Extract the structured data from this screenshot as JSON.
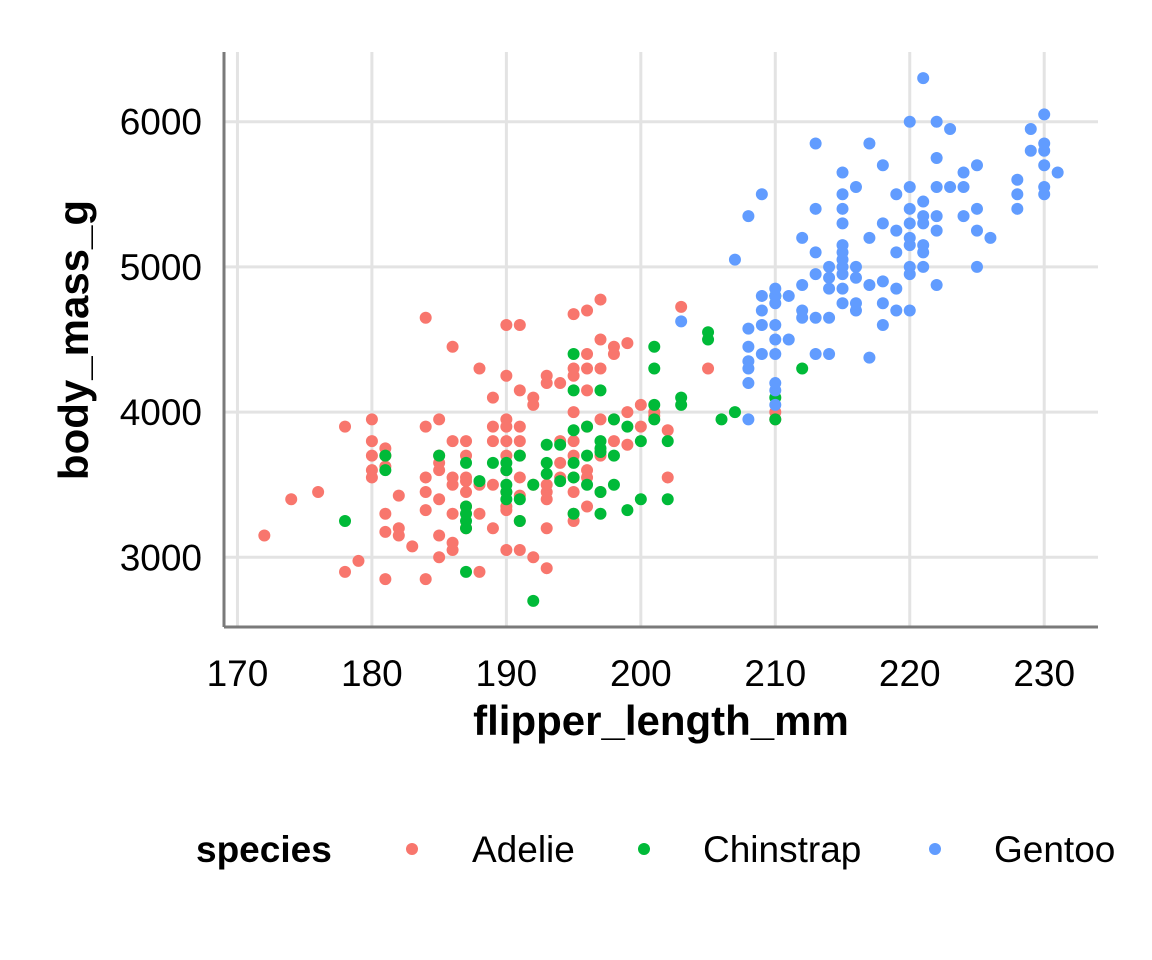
{
  "chart_data": {
    "type": "scatter",
    "xlabel": "flipper_length_mm",
    "ylabel": "body_mass_g",
    "xlim": [
      169,
      234
    ],
    "ylim": [
      2520,
      6480
    ],
    "x_ticks": [
      170,
      180,
      190,
      200,
      210,
      220,
      230
    ],
    "y_ticks": [
      3000,
      4000,
      5000,
      6000
    ],
    "x_tick_labels": [
      "170",
      "180",
      "190",
      "200",
      "210",
      "220",
      "230"
    ],
    "y_tick_labels": [
      "3000",
      "4000",
      "5000",
      "6000"
    ],
    "grid": true,
    "legend_position": "bottom",
    "legend_title": "species",
    "series": [
      {
        "name": "Adelie",
        "color": "#F8766D",
        "points": [
          [
            172,
            3150
          ],
          [
            174,
            3400
          ],
          [
            176,
            3450
          ],
          [
            178,
            2900
          ],
          [
            178,
            3900
          ],
          [
            179,
            2975
          ],
          [
            180,
            3550
          ],
          [
            180,
            3600
          ],
          [
            180,
            3700
          ],
          [
            180,
            3800
          ],
          [
            180,
            3950
          ],
          [
            181,
            2850
          ],
          [
            181,
            3175
          ],
          [
            181,
            3300
          ],
          [
            181,
            3625
          ],
          [
            181,
            3700
          ],
          [
            181,
            3750
          ],
          [
            182,
            3150
          ],
          [
            182,
            3200
          ],
          [
            182,
            3425
          ],
          [
            183,
            3075
          ],
          [
            184,
            2850
          ],
          [
            184,
            3325
          ],
          [
            184,
            3450
          ],
          [
            184,
            3550
          ],
          [
            184,
            3900
          ],
          [
            184,
            4650
          ],
          [
            185,
            3000
          ],
          [
            185,
            3150
          ],
          [
            185,
            3400
          ],
          [
            185,
            3600
          ],
          [
            185,
            3650
          ],
          [
            185,
            3700
          ],
          [
            185,
            3950
          ],
          [
            186,
            3050
          ],
          [
            186,
            3100
          ],
          [
            186,
            3300
          ],
          [
            186,
            3500
          ],
          [
            186,
            3550
          ],
          [
            186,
            3800
          ],
          [
            186,
            4450
          ],
          [
            187,
            3200
          ],
          [
            187,
            3350
          ],
          [
            187,
            3450
          ],
          [
            187,
            3525
          ],
          [
            187,
            3550
          ],
          [
            187,
            3700
          ],
          [
            187,
            3800
          ],
          [
            188,
            2900
          ],
          [
            188,
            3300
          ],
          [
            188,
            3500
          ],
          [
            188,
            4300
          ],
          [
            189,
            3200
          ],
          [
            189,
            3500
          ],
          [
            189,
            3800
          ],
          [
            189,
            3900
          ],
          [
            189,
            4100
          ],
          [
            190,
            3050
          ],
          [
            190,
            3325
          ],
          [
            190,
            3350
          ],
          [
            190,
            3450
          ],
          [
            190,
            3600
          ],
          [
            190,
            3700
          ],
          [
            190,
            3800
          ],
          [
            190,
            3900
          ],
          [
            190,
            3950
          ],
          [
            190,
            4250
          ],
          [
            190,
            4600
          ],
          [
            191,
            3050
          ],
          [
            191,
            3250
          ],
          [
            191,
            3425
          ],
          [
            191,
            3550
          ],
          [
            191,
            3700
          ],
          [
            191,
            3800
          ],
          [
            191,
            3900
          ],
          [
            191,
            4150
          ],
          [
            191,
            4600
          ],
          [
            192,
            3000
          ],
          [
            192,
            3500
          ],
          [
            192,
            4050
          ],
          [
            192,
            4100
          ],
          [
            193,
            2925
          ],
          [
            193,
            3200
          ],
          [
            193,
            3400
          ],
          [
            193,
            3450
          ],
          [
            193,
            3500
          ],
          [
            193,
            4200
          ],
          [
            193,
            4250
          ],
          [
            194,
            3550
          ],
          [
            194,
            3650
          ],
          [
            194,
            3800
          ],
          [
            194,
            4200
          ],
          [
            195,
            3250
          ],
          [
            195,
            3300
          ],
          [
            195,
            3450
          ],
          [
            195,
            3550
          ],
          [
            195,
            3700
          ],
          [
            195,
            3800
          ],
          [
            195,
            4000
          ],
          [
            195,
            4250
          ],
          [
            195,
            4300
          ],
          [
            195,
            4675
          ],
          [
            196,
            3350
          ],
          [
            196,
            3550
          ],
          [
            196,
            3600
          ],
          [
            196,
            3900
          ],
          [
            196,
            4150
          ],
          [
            196,
            4300
          ],
          [
            196,
            4400
          ],
          [
            196,
            4700
          ],
          [
            197,
            3450
          ],
          [
            197,
            3700
          ],
          [
            197,
            3950
          ],
          [
            197,
            4300
          ],
          [
            197,
            4500
          ],
          [
            197,
            4775
          ],
          [
            198,
            3800
          ],
          [
            198,
            3950
          ],
          [
            198,
            4400
          ],
          [
            198,
            4450
          ],
          [
            199,
            3775
          ],
          [
            199,
            4000
          ],
          [
            199,
            4475
          ],
          [
            200,
            3900
          ],
          [
            200,
            4050
          ],
          [
            201,
            3975
          ],
          [
            201,
            4000
          ],
          [
            202,
            3875
          ],
          [
            202,
            3550
          ],
          [
            203,
            4725
          ],
          [
            205,
            4300
          ],
          [
            210,
            3950
          ],
          [
            210,
            4000
          ]
        ]
      },
      {
        "name": "Chinstrap",
        "color": "#00BA38",
        "points": [
          [
            178,
            3250
          ],
          [
            181,
            3600
          ],
          [
            181,
            3700
          ],
          [
            185,
            3700
          ],
          [
            187,
            2900
          ],
          [
            187,
            3200
          ],
          [
            187,
            3250
          ],
          [
            187,
            3300
          ],
          [
            187,
            3350
          ],
          [
            187,
            3650
          ],
          [
            188,
            3525
          ],
          [
            189,
            3650
          ],
          [
            190,
            3400
          ],
          [
            190,
            3450
          ],
          [
            190,
            3500
          ],
          [
            190,
            3600
          ],
          [
            190,
            3650
          ],
          [
            191,
            3250
          ],
          [
            191,
            3400
          ],
          [
            191,
            3700
          ],
          [
            192,
            2700
          ],
          [
            192,
            3500
          ],
          [
            193,
            3575
          ],
          [
            193,
            3650
          ],
          [
            193,
            3775
          ],
          [
            194,
            3525
          ],
          [
            194,
            3775
          ],
          [
            195,
            3300
          ],
          [
            195,
            3550
          ],
          [
            195,
            3650
          ],
          [
            195,
            3875
          ],
          [
            195,
            4150
          ],
          [
            195,
            4400
          ],
          [
            196,
            3500
          ],
          [
            196,
            3700
          ],
          [
            196,
            3900
          ],
          [
            197,
            3300
          ],
          [
            197,
            3450
          ],
          [
            197,
            3725
          ],
          [
            197,
            3750
          ],
          [
            197,
            3800
          ],
          [
            197,
            4150
          ],
          [
            198,
            3500
          ],
          [
            198,
            3700
          ],
          [
            198,
            3950
          ],
          [
            199,
            3325
          ],
          [
            199,
            3900
          ],
          [
            200,
            3400
          ],
          [
            200,
            3800
          ],
          [
            201,
            3950
          ],
          [
            201,
            4050
          ],
          [
            201,
            4300
          ],
          [
            201,
            4450
          ],
          [
            202,
            3400
          ],
          [
            202,
            3800
          ],
          [
            203,
            4050
          ],
          [
            203,
            4100
          ],
          [
            205,
            4500
          ],
          [
            205,
            4550
          ],
          [
            206,
            3950
          ],
          [
            207,
            4000
          ],
          [
            210,
            3950
          ],
          [
            210,
            4100
          ],
          [
            210,
            4800
          ],
          [
            212,
            4300
          ]
        ]
      },
      {
        "name": "Gentoo",
        "color": "#619CFF",
        "points": [
          [
            203,
            4625
          ],
          [
            207,
            5050
          ],
          [
            208,
            3950
          ],
          [
            208,
            4200
          ],
          [
            208,
            4300
          ],
          [
            208,
            4350
          ],
          [
            208,
            4450
          ],
          [
            208,
            4575
          ],
          [
            208,
            5350
          ],
          [
            209,
            4400
          ],
          [
            209,
            4600
          ],
          [
            209,
            4700
          ],
          [
            209,
            4800
          ],
          [
            209,
            5500
          ],
          [
            210,
            4050
          ],
          [
            210,
            4150
          ],
          [
            210,
            4200
          ],
          [
            210,
            4400
          ],
          [
            210,
            4500
          ],
          [
            210,
            4600
          ],
          [
            210,
            4750
          ],
          [
            210,
            4800
          ],
          [
            210,
            4850
          ],
          [
            211,
            4500
          ],
          [
            211,
            4800
          ],
          [
            212,
            4650
          ],
          [
            212,
            4700
          ],
          [
            212,
            4875
          ],
          [
            212,
            5200
          ],
          [
            213,
            4400
          ],
          [
            213,
            4650
          ],
          [
            213,
            4950
          ],
          [
            213,
            5100
          ],
          [
            213,
            5400
          ],
          [
            213,
            5850
          ],
          [
            214,
            4400
          ],
          [
            214,
            4650
          ],
          [
            214,
            4850
          ],
          [
            214,
            4925
          ],
          [
            214,
            5000
          ],
          [
            215,
            4750
          ],
          [
            215,
            4850
          ],
          [
            215,
            4950
          ],
          [
            215,
            5000
          ],
          [
            215,
            5050
          ],
          [
            215,
            5100
          ],
          [
            215,
            5150
          ],
          [
            215,
            5300
          ],
          [
            215,
            5400
          ],
          [
            215,
            5500
          ],
          [
            215,
            5650
          ],
          [
            216,
            4700
          ],
          [
            216,
            4750
          ],
          [
            216,
            4925
          ],
          [
            216,
            5000
          ],
          [
            216,
            5550
          ],
          [
            217,
            4375
          ],
          [
            217,
            4875
          ],
          [
            217,
            5200
          ],
          [
            217,
            5850
          ],
          [
            218,
            4600
          ],
          [
            218,
            4750
          ],
          [
            218,
            4900
          ],
          [
            218,
            5300
          ],
          [
            218,
            5700
          ],
          [
            219,
            4700
          ],
          [
            219,
            4850
          ],
          [
            219,
            5100
          ],
          [
            219,
            5250
          ],
          [
            219,
            5500
          ],
          [
            220,
            4700
          ],
          [
            220,
            4950
          ],
          [
            220,
            5000
          ],
          [
            220,
            5150
          ],
          [
            220,
            5200
          ],
          [
            220,
            5300
          ],
          [
            220,
            5400
          ],
          [
            220,
            5550
          ],
          [
            220,
            6000
          ],
          [
            221,
            5000
          ],
          [
            221,
            5100
          ],
          [
            221,
            5150
          ],
          [
            221,
            5300
          ],
          [
            221,
            5350
          ],
          [
            221,
            5450
          ],
          [
            221,
            6300
          ],
          [
            222,
            4875
          ],
          [
            222,
            5250
          ],
          [
            222,
            5350
          ],
          [
            222,
            5550
          ],
          [
            222,
            5750
          ],
          [
            222,
            6000
          ],
          [
            223,
            5550
          ],
          [
            223,
            5950
          ],
          [
            224,
            5350
          ],
          [
            224,
            5550
          ],
          [
            224,
            5650
          ],
          [
            225,
            5000
          ],
          [
            225,
            5250
          ],
          [
            225,
            5400
          ],
          [
            225,
            5700
          ],
          [
            226,
            5200
          ],
          [
            228,
            5400
          ],
          [
            228,
            5500
          ],
          [
            228,
            5600
          ],
          [
            229,
            5800
          ],
          [
            229,
            5950
          ],
          [
            230,
            5500
          ],
          [
            230,
            5550
          ],
          [
            230,
            5700
          ],
          [
            230,
            5800
          ],
          [
            230,
            5850
          ],
          [
            230,
            6050
          ],
          [
            231,
            5650
          ]
        ]
      }
    ]
  }
}
